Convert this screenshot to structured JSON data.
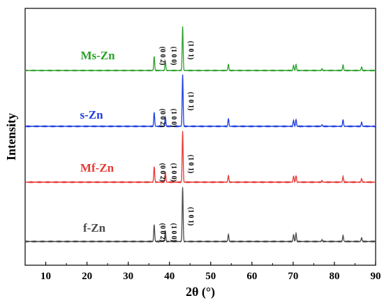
{
  "chart_data": {
    "type": "line",
    "xlabel": "2θ (°)",
    "ylabel": "Intensity",
    "xlim": [
      5,
      90
    ],
    "xticks": [
      10,
      20,
      30,
      40,
      50,
      60,
      70,
      80,
      90
    ],
    "y_ticks_shown": false,
    "grid": false,
    "legend": "none",
    "series": [
      {
        "name": "Ms-Zn",
        "color": "#2ca02c",
        "peaks": [
          {
            "x": 36.3,
            "rel": 0.32
          },
          {
            "x": 39.0,
            "rel": 0.21
          },
          {
            "x": 43.2,
            "rel": 1.0
          },
          {
            "x": 54.3,
            "rel": 0.14
          },
          {
            "x": 70.1,
            "rel": 0.12
          },
          {
            "x": 70.7,
            "rel": 0.14
          },
          {
            "x": 77.0,
            "rel": 0.04
          },
          {
            "x": 82.1,
            "rel": 0.13
          },
          {
            "x": 86.6,
            "rel": 0.08
          }
        ],
        "labels": [
          {
            "x": 36.3,
            "text": "(0 0 2)"
          },
          {
            "x": 39.0,
            "text": "(1 0 0)"
          },
          {
            "x": 43.2,
            "text": "(1 0 1)"
          }
        ]
      },
      {
        "name": "s-Zn",
        "color": "#1f3ee0",
        "peaks": [
          {
            "x": 36.3,
            "rel": 0.27
          },
          {
            "x": 39.0,
            "rel": 0.18
          },
          {
            "x": 43.2,
            "rel": 1.0
          },
          {
            "x": 54.3,
            "rel": 0.15
          },
          {
            "x": 70.1,
            "rel": 0.12
          },
          {
            "x": 70.7,
            "rel": 0.13
          },
          {
            "x": 77.0,
            "rel": 0.03
          },
          {
            "x": 82.1,
            "rel": 0.13
          },
          {
            "x": 86.6,
            "rel": 0.08
          }
        ],
        "labels": [
          {
            "x": 36.3,
            "text": "(0 0 2)"
          },
          {
            "x": 39.0,
            "text": "(1 0 0)"
          },
          {
            "x": 43.2,
            "text": "(1 0 1)"
          }
        ]
      },
      {
        "name": "Mf-Zn",
        "color": "#e53935",
        "peaks": [
          {
            "x": 36.3,
            "rel": 0.31
          },
          {
            "x": 39.0,
            "rel": 0.2
          },
          {
            "x": 43.2,
            "rel": 1.0
          },
          {
            "x": 54.3,
            "rel": 0.13
          },
          {
            "x": 70.1,
            "rel": 0.12
          },
          {
            "x": 70.7,
            "rel": 0.13
          },
          {
            "x": 77.0,
            "rel": 0.03
          },
          {
            "x": 82.1,
            "rel": 0.11
          },
          {
            "x": 86.6,
            "rel": 0.07
          }
        ],
        "labels": [
          {
            "x": 36.3,
            "text": "(0 0 2)"
          },
          {
            "x": 39.0,
            "text": "(1 0 0)"
          },
          {
            "x": 43.2,
            "text": "(1 0 1)"
          }
        ]
      },
      {
        "name": "f-Zn",
        "color": "#4a4a4a",
        "peaks": [
          {
            "x": 36.3,
            "rel": 0.31
          },
          {
            "x": 39.0,
            "rel": 0.2
          },
          {
            "x": 43.2,
            "rel": 1.0
          },
          {
            "x": 54.3,
            "rel": 0.13
          },
          {
            "x": 70.1,
            "rel": 0.13
          },
          {
            "x": 70.7,
            "rel": 0.15
          },
          {
            "x": 77.0,
            "rel": 0.03
          },
          {
            "x": 82.1,
            "rel": 0.11
          },
          {
            "x": 86.6,
            "rel": 0.07
          }
        ],
        "labels": [
          {
            "x": 36.3,
            "text": "(0 0 2)"
          },
          {
            "x": 39.0,
            "text": "(1 0 0)"
          },
          {
            "x": 43.2,
            "text": "(1 0 1)"
          }
        ]
      }
    ]
  }
}
